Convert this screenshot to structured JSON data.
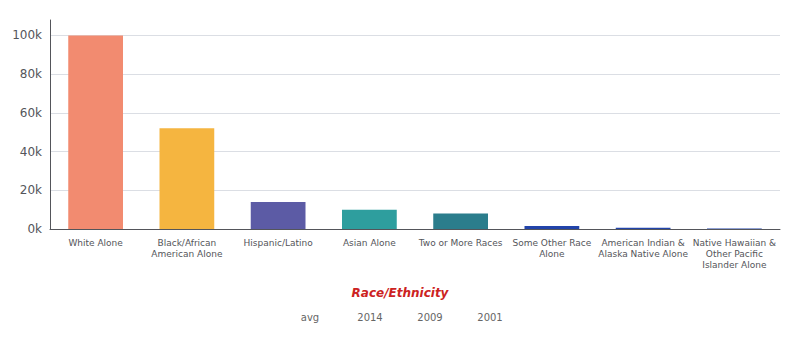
{
  "chart_data": {
    "type": "bar",
    "categories": [
      "White Alone",
      "Black/African\nAmerican Alone",
      "Hispanic/Latino",
      "Asian Alone",
      "Two or More Races",
      "Some Other Race\nAlone",
      "American Indian &\nAlaska Native Alone",
      "Native Hawaiian &\nOther Pacific\nIslander Alone"
    ],
    "values": [
      100000,
      52000,
      14000,
      10000,
      8000,
      1500,
      600,
      300
    ],
    "colors": [
      "#F28B70",
      "#F5B540",
      "#5C5BA5",
      "#2E9E9E",
      "#2B7D8C",
      "#2244AA",
      "#2244AA",
      "#2244AA"
    ],
    "ylim": [
      0,
      108000
    ],
    "yticks": [
      {
        "value": 0,
        "label": "0k"
      },
      {
        "value": 20000,
        "label": "20k"
      },
      {
        "value": 40000,
        "label": "40k"
      },
      {
        "value": 60000,
        "label": "60k"
      },
      {
        "value": 80000,
        "label": "80k"
      },
      {
        "value": 100000,
        "label": "100k"
      }
    ],
    "grid": true,
    "annotations": [
      {
        "text": "Race/Ethnicity",
        "color": "#CC2222"
      },
      {
        "text": "avg"
      },
      {
        "text": "2014"
      },
      {
        "text": "2009"
      },
      {
        "text": "2001"
      }
    ]
  }
}
